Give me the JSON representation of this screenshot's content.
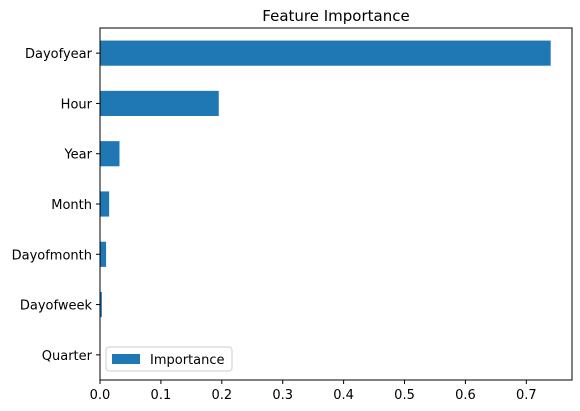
{
  "chart_data": {
    "type": "bar",
    "orientation": "horizontal",
    "title": "Feature Importance",
    "xlabel": "",
    "ylabel": "",
    "categories": [
      "Dayofyear",
      "Hour",
      "Year",
      "Month",
      "Dayofmonth",
      "Dayofweek",
      "Quarter"
    ],
    "series": [
      {
        "name": "Importance",
        "values": [
          0.74,
          0.195,
          0.032,
          0.015,
          0.01,
          0.003,
          0.0
        ],
        "color": "#1f77b4"
      }
    ],
    "xlim": [
      0,
      0.775
    ],
    "xticks": [
      "0.0",
      "0.1",
      "0.2",
      "0.3",
      "0.4",
      "0.5",
      "0.6",
      "0.7"
    ],
    "grid": false,
    "legend_position": "lower-left"
  }
}
